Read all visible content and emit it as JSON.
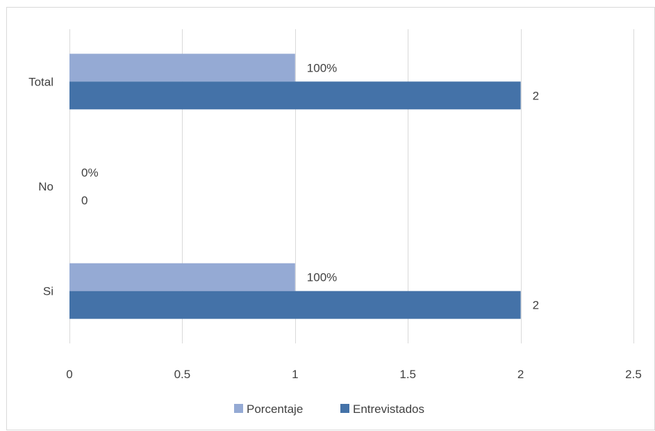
{
  "chart_data": {
    "type": "bar",
    "orientation": "horizontal",
    "categories": [
      "Total",
      "No",
      "Si"
    ],
    "series": [
      {
        "name": "Porcentaje",
        "values": [
          1,
          0,
          1
        ],
        "data_labels": [
          "100%",
          "0%",
          "100%"
        ],
        "color": "#95aad4"
      },
      {
        "name": "Entrevistados",
        "values": [
          2,
          0,
          2
        ],
        "data_labels": [
          "2",
          "0",
          "2"
        ],
        "color": "#4472a8"
      }
    ],
    "xlim": [
      0,
      2.5
    ],
    "x_ticks": [
      "0",
      "0.5",
      "1",
      "1.5",
      "2",
      "2.5"
    ],
    "x_tick_values": [
      0,
      0.5,
      1,
      1.5,
      2,
      2.5
    ],
    "grid": "vertical",
    "legend_position": "bottom"
  }
}
